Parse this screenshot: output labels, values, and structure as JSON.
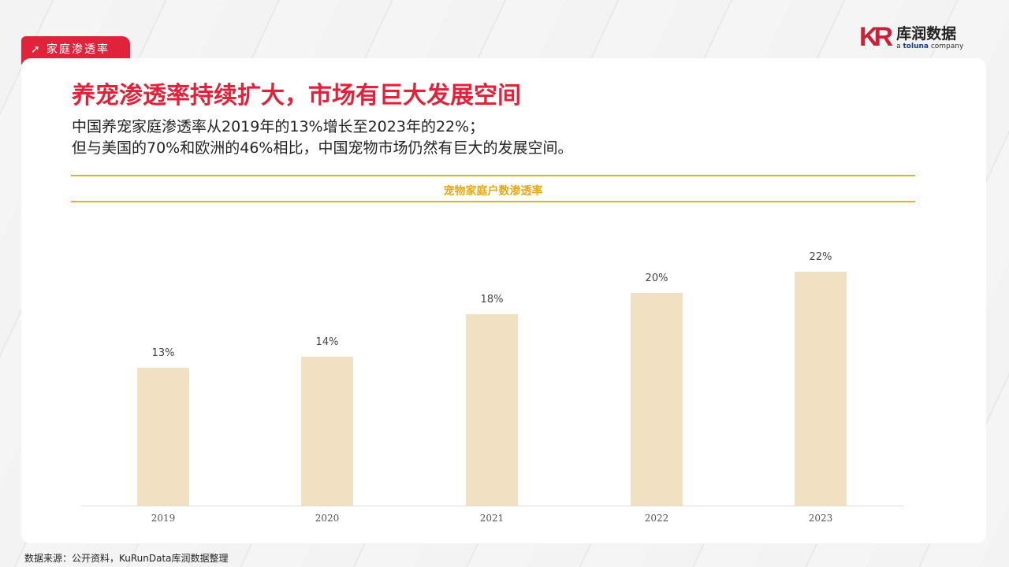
{
  "tag": {
    "icon": "arrow-up-right-icon",
    "label": "家庭渗透率"
  },
  "logo": {
    "mark": "KR",
    "name": "库润数据",
    "tagline_pre": "a ",
    "tagline_brand": "toluna",
    "tagline_post": " company"
  },
  "title": "养宠渗透率持续扩大，市场有巨大发展空间",
  "subtitle": [
    "中国养宠家庭渗透率从2019年的13%增长至2023年的22%；",
    "但与美国的70%和欧洲的46%相比，中国宠物市场仍然有巨大的发展空间。"
  ],
  "colors": {
    "accent": "#e0223b",
    "gold": "#e5b414",
    "bar": "#f1e0c2"
  },
  "chart_data": {
    "type": "bar",
    "title": "宠物家庭户数渗透率",
    "categories": [
      "2019",
      "2020",
      "2021",
      "2022",
      "2023"
    ],
    "values": [
      13,
      14,
      18,
      20,
      22
    ],
    "labels": [
      "13%",
      "14%",
      "18%",
      "20%",
      "22%"
    ],
    "grid": false
  },
  "source": "数据来源：公开资料，KuRunData库润数据整理"
}
